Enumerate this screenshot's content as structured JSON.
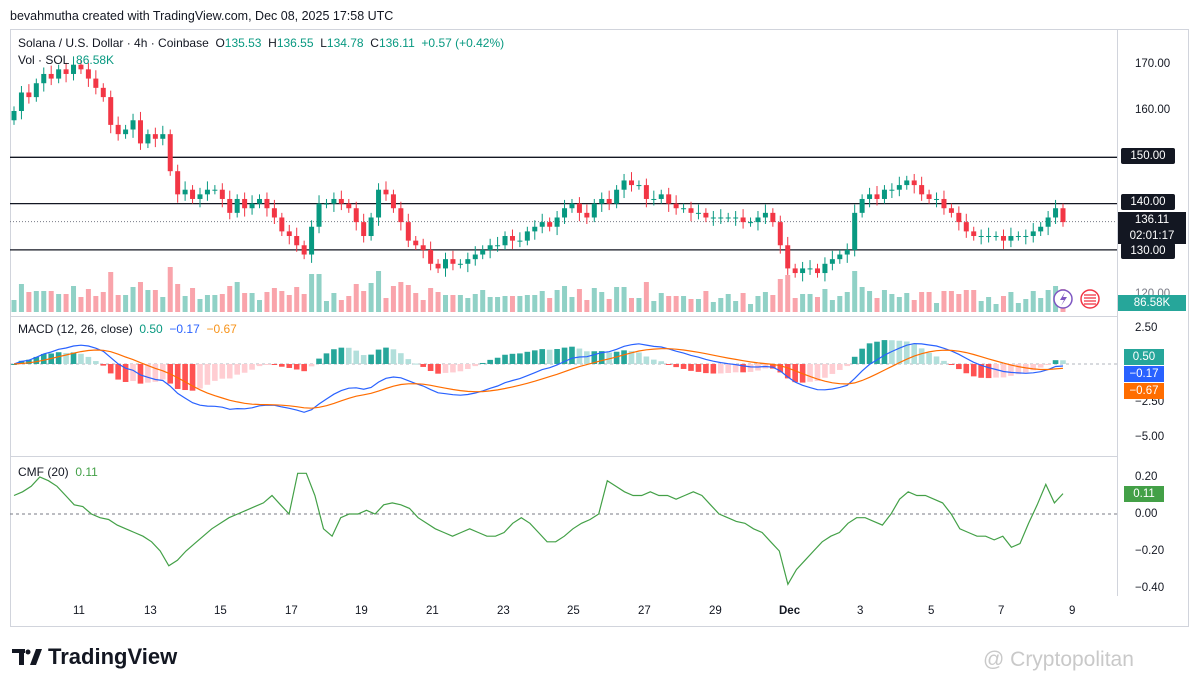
{
  "credit": "bevahmutha created with TradingView.com, Dec 08, 2025 17:58 UTC",
  "legend": {
    "symbol": "Solana / U.S. Dollar · 4h · Coinbase",
    "o_label": "O",
    "o": "135.53",
    "h_label": "H",
    "h": "136.55",
    "l_label": "L",
    "l": "134.78",
    "c_label": "C",
    "c": "136.11",
    "change": "+0.57 (+0.42%)",
    "vol_label": "Vol · SOL",
    "vol": "86.58K"
  },
  "macd_legend": {
    "label": "MACD (12, 26, close)",
    "hist": "0.50",
    "macd": "−0.17",
    "signal": "−0.67"
  },
  "cmf_legend": {
    "label": "CMF (20)",
    "value": "0.11"
  },
  "price_axis": [
    "170.00",
    "160.00",
    "150.00",
    "140.00",
    "130.00",
    "120.00"
  ],
  "price_labels": {
    "last": "136.11",
    "countdown": "02:01:17",
    "volume": "86.58K"
  },
  "levels": [
    {
      "value": 150,
      "label": "150.00"
    },
    {
      "value": 140,
      "label": "140.00"
    },
    {
      "value": 130,
      "label": "130.00"
    }
  ],
  "macd_axis": [
    "2.50",
    "−2.50",
    "−5.00"
  ],
  "macd_labels": {
    "hist": "0.50",
    "macd": "−0.17",
    "signal": "−0.67"
  },
  "cmf_axis": [
    "0.20",
    "0.00",
    "−0.20",
    "−0.40"
  ],
  "cmf_label": "0.11",
  "x_labels": [
    "11",
    "13",
    "15",
    "17",
    "19",
    "21",
    "23",
    "25",
    "27",
    "29",
    "Dec",
    "3",
    "5",
    "7",
    "9"
  ],
  "logo": "TradingView",
  "watermark": "@ Cryptopolitan",
  "colors": {
    "up": "#089981",
    "down": "#f23645",
    "macd": "#2962ff",
    "signal": "#ff6d00",
    "cmf": "#43a047"
  },
  "chart_data": [
    {
      "type": "candlestick",
      "title": "Solana / U.S. Dollar · 4h · Coinbase",
      "ylim": [
        118,
        177
      ],
      "levels": [
        150,
        140,
        130
      ],
      "closes": [
        160,
        164,
        163,
        166,
        168,
        167,
        169,
        168,
        170,
        169,
        167,
        165,
        163,
        157,
        155,
        156,
        158,
        153,
        155,
        154,
        155,
        147,
        142,
        143,
        141,
        142,
        143,
        143,
        141,
        138,
        141,
        139,
        140,
        141,
        139,
        137,
        134,
        133,
        131,
        129,
        135,
        140,
        140,
        141,
        140,
        139,
        136,
        133,
        137,
        143,
        142,
        139,
        136,
        132,
        131,
        130,
        127,
        126,
        128,
        127,
        127,
        128,
        129,
        130,
        131,
        131,
        133,
        132,
        132,
        134,
        135,
        136,
        135,
        137,
        139,
        140,
        138,
        137,
        140,
        141,
        140,
        143,
        145,
        144,
        144,
        141,
        141,
        142,
        140,
        139,
        139,
        138,
        138,
        137,
        137,
        137,
        137,
        137,
        136,
        136,
        137,
        138,
        136,
        131,
        126,
        125,
        126,
        126,
        125,
        127,
        128,
        129,
        130,
        138,
        141,
        142,
        141,
        143,
        143,
        144,
        145,
        144,
        142,
        141,
        141,
        139,
        138,
        136,
        134,
        133,
        133,
        133,
        133,
        132,
        133,
        133,
        133,
        134,
        135,
        137,
        139,
        136
      ]
    },
    {
      "type": "bar",
      "name": "Vol · SOL",
      "last": 86580
    },
    {
      "type": "line",
      "title": "MACD (12, 26, close)",
      "ylim": [
        -5.8,
        3.2
      ],
      "last": {
        "histogram": 0.5,
        "macd": -0.17,
        "signal": -0.67
      }
    },
    {
      "type": "line",
      "title": "CMF (20)",
      "ylim": [
        -0.46,
        0.27
      ],
      "values": [
        0.1,
        0.12,
        0.15,
        0.2,
        0.18,
        0.15,
        0.1,
        0.05,
        0.04,
        0,
        -0.02,
        -0.03,
        -0.06,
        -0.08,
        -0.1,
        -0.12,
        -0.15,
        -0.2,
        -0.28,
        -0.25,
        -0.2,
        -0.16,
        -0.12,
        -0.08,
        -0.05,
        -0.02,
        0,
        0.02,
        0.04,
        0.06,
        0.1,
        0.05,
        0,
        0.22,
        0.22,
        0.1,
        -0.08,
        -0.12,
        -0.02,
        0.0,
        0.0,
        0.02,
        0.0,
        0.05,
        0.06,
        0.05,
        0.03,
        -0.02,
        -0.05,
        -0.08,
        -0.1,
        -0.12,
        -0.1,
        -0.08,
        -0.1,
        -0.12,
        -0.12,
        -0.1,
        -0.05,
        -0.02,
        -0.05,
        -0.1,
        -0.15,
        -0.15,
        -0.12,
        -0.08,
        -0.05,
        -0.03,
        0.0,
        0.18,
        0.15,
        0.12,
        0.1,
        0.1,
        0.12,
        0.1,
        0.1,
        0.08,
        0.1,
        0.12,
        0.1,
        0.05,
        0.0,
        -0.02,
        -0.04,
        -0.05,
        -0.08,
        -0.1,
        -0.15,
        -0.2,
        -0.38,
        -0.3,
        -0.25,
        -0.2,
        -0.15,
        -0.12,
        -0.1,
        -0.05,
        -0.02,
        -0.02,
        -0.04,
        -0.06,
        0.0,
        0.08,
        0.12,
        0.1,
        0.1,
        0.08,
        0.06,
        0.0,
        -0.08,
        -0.1,
        -0.12,
        -0.12,
        -0.14,
        -0.12,
        -0.18,
        -0.16,
        -0.05,
        0.05,
        0.16,
        0.06,
        0.11
      ]
    }
  ]
}
